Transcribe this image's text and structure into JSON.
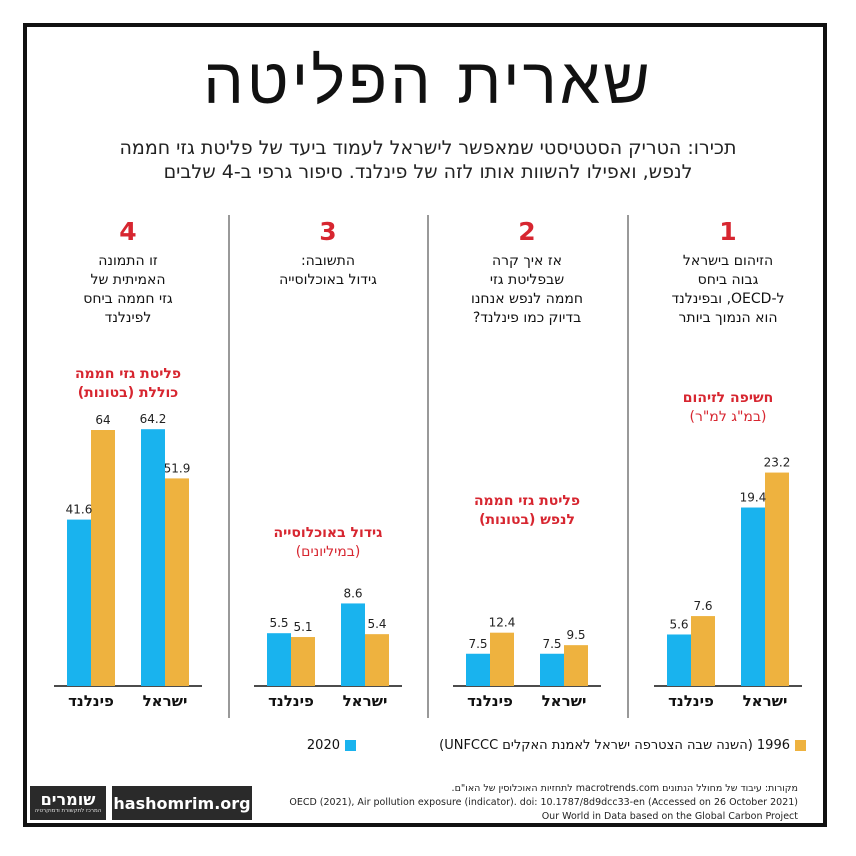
{
  "title": "שארית הפליטה",
  "subtitle_line1": "תכירו: הטריק הסטטיסטי שמאפשר לישראל לעמוד ביעד של פליטת גזי חממה",
  "subtitle_line2": "לנפש, ואפילו להשוות אותו לזה של פינלנד. סיפור גרפי ב-4 שלבים",
  "colors": {
    "y1996": "#EEB23F",
    "y2020": "#19B3EE",
    "accent": "#D72630",
    "text": "#222222"
  },
  "legend": {
    "item_1996": "1996 (השנה שבה הצטרפה ישראל לאמנת האקלים UNFCCC)",
    "item_2020": "2020"
  },
  "sources": {
    "line1": "מקורות: עיבוד של מחולל הנתונים macrotrends.com לתחזיות האוכלוסין של האו\"ם.",
    "line2": "OECD (2021), Air pollution exposure (indicator). doi: 10.1787/8d9dcc33-en (Accessed on 26 October 2021)",
    "line3": "Our World in Data based on the Global Carbon Project"
  },
  "logo": {
    "name": "שומרים",
    "tagline": "המרכז לתקשורת ודמוקרטיה",
    "url": "hashomrim.org"
  },
  "chart_data": [
    {
      "type": "bar",
      "step": "1",
      "header": [
        "הזיהום בישראל",
        "גבוה ביחס",
        "ל-OECD, ובפינלנד",
        "הוא הנמוך ביותר"
      ],
      "metric_lines": [
        [
          "חשיפה לזיהום",
          "bold"
        ],
        [
          "(במ\"ג למ\"ר)",
          "normal"
        ]
      ],
      "categories": [
        "ישראל",
        "פינלנד"
      ],
      "series": [
        {
          "name": "1996",
          "values": [
            23.2,
            7.6
          ]
        },
        {
          "name": "2020",
          "values": [
            19.4,
            5.6
          ]
        }
      ],
      "labels": {
        "1996": [
          "23.2",
          "7.6"
        ],
        "2020": [
          "19.4",
          "5.6"
        ]
      }
    },
    {
      "type": "bar",
      "step": "2",
      "header": [
        "אז איך קרה",
        "שבפליטת גזי",
        "חממה לנפש אנחנו",
        "בדיוק כמו פינלנד?"
      ],
      "metric_lines": [
        [
          "פליטת גזי חממה",
          "bold"
        ],
        [
          "לנפש (בטונות)",
          "mixed"
        ]
      ],
      "categories": [
        "ישראל",
        "פינלנד"
      ],
      "series": [
        {
          "name": "1996",
          "values": [
            9.5,
            12.4
          ]
        },
        {
          "name": "2020",
          "values": [
            7.5,
            7.5
          ]
        }
      ],
      "labels": {
        "1996": [
          "9.5",
          "12.4"
        ],
        "2020": [
          "7.5",
          "7.5"
        ]
      }
    },
    {
      "type": "bar",
      "step": "3",
      "header": [
        "התשובה:",
        "גידול באוכלוסייה"
      ],
      "metric_lines": [
        [
          "גידול באוכלוסייה",
          "bold"
        ],
        [
          "(במיליונים)",
          "normal"
        ]
      ],
      "categories": [
        "ישראל",
        "פינלנד"
      ],
      "series": [
        {
          "name": "1996",
          "values": [
            5.4,
            5.1
          ]
        },
        {
          "name": "2020",
          "values": [
            8.6,
            5.5
          ]
        }
      ],
      "labels": {
        "1996": [
          "5.4",
          "5.1"
        ],
        "2020": [
          "8.6",
          "5.5"
        ]
      }
    },
    {
      "type": "bar",
      "step": "4",
      "header": [
        "זו התמונה",
        "האמיתית של",
        "גזי חממה ביחס",
        "לפינלנד"
      ],
      "metric_lines": [
        [
          "פליטת גזי חממה",
          "bold"
        ],
        [
          "כוללת (בטונות)",
          "mixed"
        ]
      ],
      "categories": [
        "ישראל",
        "פינלנד"
      ],
      "series": [
        {
          "name": "1996",
          "values": [
            51.9,
            64
          ]
        },
        {
          "name": "2020",
          "values": [
            64.2,
            41.6
          ]
        }
      ],
      "labels": {
        "1996": [
          "51.9",
          "64"
        ],
        "2020": [
          "64.2",
          "41.6"
        ]
      }
    }
  ]
}
